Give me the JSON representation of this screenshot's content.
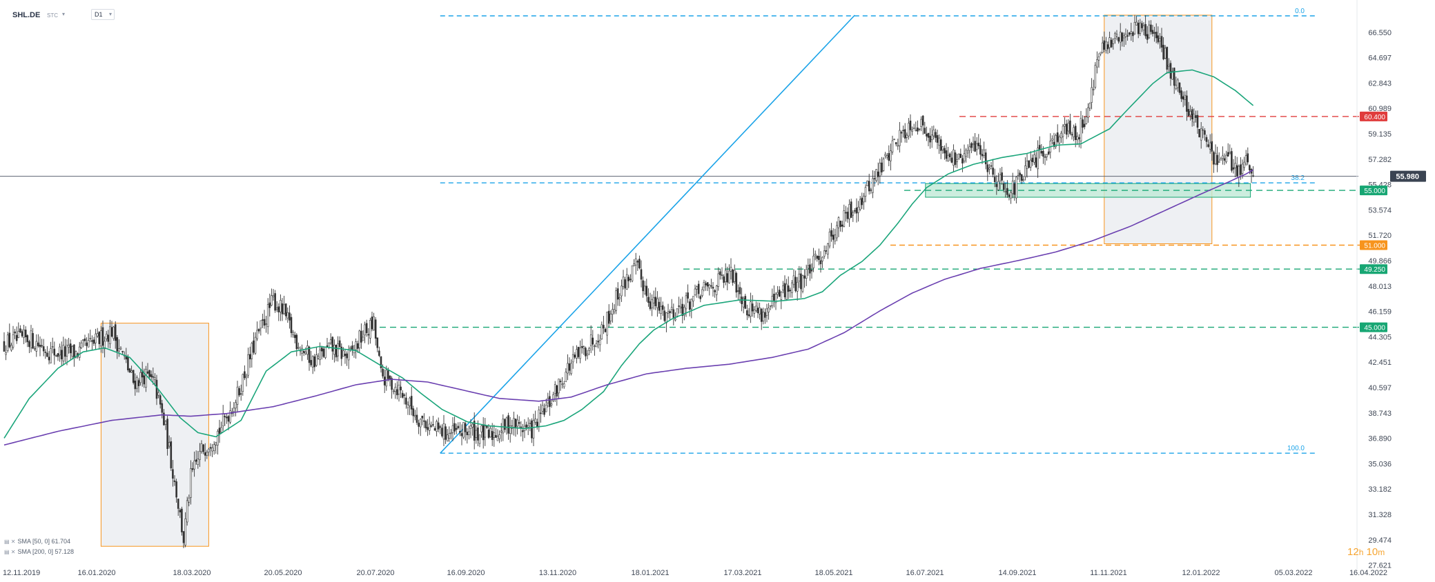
{
  "header": {
    "symbol": "SHL.DE",
    "exchange": "STC",
    "timeframe": "D1"
  },
  "indicators": [
    {
      "label": "SMA [50, 0] 61.704",
      "color": "#1aa57a"
    },
    {
      "label": "SMA [200, 0] 57.128",
      "color": "#6a3fb0"
    }
  ],
  "timer": {
    "hours": "12",
    "h": "h",
    "minutes": "10",
    "m": "m"
  },
  "colors": {
    "up": "#ffffff",
    "down": "#333333",
    "sma50": "#1aa57a",
    "sma200": "#6a3fb0",
    "fib": "#1aa3e8",
    "resistance": "#e03c3c",
    "support": "#17a673",
    "orange": "#f7941d",
    "price_tag": "#3b4452"
  },
  "chart_data": {
    "type": "candlestick",
    "title": "SHL.DE",
    "y_ticks": [
      "66.550",
      "64.697",
      "62.843",
      "60.989",
      "59.135",
      "57.282",
      "55.428",
      "53.574",
      "51.720",
      "49.866",
      "48.013",
      "46.159",
      "44.305",
      "42.451",
      "40.597",
      "38.743",
      "36.890",
      "35.036",
      "33.182",
      "31.328",
      "29.474",
      "27.621"
    ],
    "x_ticks": [
      "12.11.2019",
      "16.01.2020",
      "18.03.2020",
      "20.05.2020",
      "20.07.2020",
      "16.09.2020",
      "13.11.2020",
      "18.01.2021",
      "17.03.2021",
      "18.05.2021",
      "16.07.2021",
      "14.09.2021",
      "11.11.2021",
      "12.01.2022",
      "05.03.2022",
      "16.04.2022"
    ],
    "ylim": [
      27.6,
      67.8
    ],
    "current_price": "55.980",
    "price_levels": [
      {
        "label": "60.400",
        "value": 60.4,
        "color": "#e03c3c"
      },
      {
        "label": "55.000",
        "value": 55.0,
        "color": "#17a673"
      },
      {
        "label": "51.000",
        "value": 51.0,
        "color": "#f7941d"
      },
      {
        "label": "49.250",
        "value": 49.25,
        "color": "#17a673"
      },
      {
        "label": "45.000",
        "value": 45.0,
        "color": "#17a673"
      }
    ],
    "fib_labels": [
      {
        "label": "0.0",
        "value": 67.75
      },
      {
        "label": "38.2",
        "value": 55.55
      },
      {
        "label": "100.0",
        "value": 35.8
      }
    ],
    "close_anchors": [
      [
        0,
        43.8
      ],
      [
        14,
        44.2
      ],
      [
        26,
        43.2
      ],
      [
        40,
        43.1
      ],
      [
        52,
        44.0
      ],
      [
        60,
        44.8
      ],
      [
        66,
        43.0
      ],
      [
        72,
        41.0
      ],
      [
        78,
        41.5
      ],
      [
        84,
        40.8
      ],
      [
        90,
        37.5
      ],
      [
        96,
        33.0
      ],
      [
        100,
        29.5
      ],
      [
        104,
        34.0
      ],
      [
        110,
        36.0
      ],
      [
        120,
        37.5
      ],
      [
        130,
        40.0
      ],
      [
        140,
        44.0
      ],
      [
        150,
        47.0
      ],
      [
        156,
        46.0
      ],
      [
        162,
        44.2
      ],
      [
        172,
        42.5
      ],
      [
        182,
        43.5
      ],
      [
        192,
        42.8
      ],
      [
        200,
        44.5
      ],
      [
        206,
        45.2
      ],
      [
        210,
        41.5
      ],
      [
        220,
        40.5
      ],
      [
        230,
        38.5
      ],
      [
        240,
        37.5
      ],
      [
        250,
        37.2
      ],
      [
        260,
        37.5
      ],
      [
        270,
        37.0
      ],
      [
        282,
        38.0
      ],
      [
        294,
        37.5
      ],
      [
        304,
        39.5
      ],
      [
        314,
        42.0
      ],
      [
        324,
        43.5
      ],
      [
        334,
        45.0
      ],
      [
        344,
        48.0
      ],
      [
        352,
        49.4
      ],
      [
        360,
        47.0
      ],
      [
        368,
        46.0
      ],
      [
        378,
        46.5
      ],
      [
        388,
        47.5
      ],
      [
        398,
        48.3
      ],
      [
        406,
        48.8
      ],
      [
        414,
        46.5
      ],
      [
        424,
        46.0
      ],
      [
        434,
        47.5
      ],
      [
        444,
        48.5
      ],
      [
        454,
        50.0
      ],
      [
        462,
        52.0
      ],
      [
        472,
        53.5
      ],
      [
        478,
        54.5
      ],
      [
        488,
        56.5
      ],
      [
        496,
        58.5
      ],
      [
        506,
        60.0
      ],
      [
        514,
        59.5
      ],
      [
        524,
        58.0
      ],
      [
        532,
        57.0
      ],
      [
        542,
        58.5
      ],
      [
        552,
        56.0
      ],
      [
        562,
        55.0
      ],
      [
        570,
        56.5
      ],
      [
        580,
        58.0
      ],
      [
        590,
        59.5
      ],
      [
        598,
        59.0
      ],
      [
        604,
        61.0
      ],
      [
        610,
        65.0
      ],
      [
        620,
        66.0
      ],
      [
        630,
        67.0
      ],
      [
        640,
        66.5
      ],
      [
        646,
        65.0
      ],
      [
        654,
        62.5
      ],
      [
        662,
        60.5
      ],
      [
        670,
        58.5
      ],
      [
        676,
        57.0
      ],
      [
        682,
        57.2
      ],
      [
        688,
        56.5
      ],
      [
        692,
        57.0
      ],
      [
        696,
        56.0
      ]
    ],
    "sma50_anchors": [
      [
        0,
        36.9
      ],
      [
        14,
        39.8
      ],
      [
        30,
        42.0
      ],
      [
        44,
        43.2
      ],
      [
        56,
        43.5
      ],
      [
        70,
        42.8
      ],
      [
        84,
        40.8
      ],
      [
        98,
        38.4
      ],
      [
        108,
        37.3
      ],
      [
        118,
        37.0
      ],
      [
        132,
        38.2
      ],
      [
        146,
        41.8
      ],
      [
        160,
        43.2
      ],
      [
        176,
        43.6
      ],
      [
        196,
        43.3
      ],
      [
        210,
        42.2
      ],
      [
        222,
        41.3
      ],
      [
        232,
        40.2
      ],
      [
        244,
        39.0
      ],
      [
        258,
        38.1
      ],
      [
        270,
        37.8
      ],
      [
        290,
        37.6
      ],
      [
        302,
        37.8
      ],
      [
        312,
        38.2
      ],
      [
        322,
        39.0
      ],
      [
        334,
        40.3
      ],
      [
        344,
        42.2
      ],
      [
        354,
        43.8
      ],
      [
        362,
        44.8
      ],
      [
        372,
        45.6
      ],
      [
        390,
        46.6
      ],
      [
        410,
        47.0
      ],
      [
        430,
        46.9
      ],
      [
        446,
        47.1
      ],
      [
        456,
        47.6
      ],
      [
        466,
        48.8
      ],
      [
        478,
        49.8
      ],
      [
        488,
        51.0
      ],
      [
        498,
        52.6
      ],
      [
        506,
        54.0
      ],
      [
        514,
        55.2
      ],
      [
        526,
        56.2
      ],
      [
        540,
        56.9
      ],
      [
        556,
        57.4
      ],
      [
        570,
        57.7
      ],
      [
        586,
        58.3
      ],
      [
        600,
        58.4
      ],
      [
        616,
        59.5
      ],
      [
        626,
        60.9
      ],
      [
        640,
        62.8
      ],
      [
        648,
        63.6
      ],
      [
        662,
        63.8
      ],
      [
        674,
        63.3
      ],
      [
        686,
        62.3
      ],
      [
        696,
        61.2
      ]
    ],
    "sma200_anchors": [
      [
        0,
        36.4
      ],
      [
        30,
        37.4
      ],
      [
        60,
        38.2
      ],
      [
        88,
        38.6
      ],
      [
        104,
        38.5
      ],
      [
        124,
        38.7
      ],
      [
        150,
        39.2
      ],
      [
        174,
        40.0
      ],
      [
        196,
        40.8
      ],
      [
        216,
        41.2
      ],
      [
        236,
        41.0
      ],
      [
        256,
        40.4
      ],
      [
        276,
        39.8
      ],
      [
        298,
        39.6
      ],
      [
        316,
        39.9
      ],
      [
        336,
        40.8
      ],
      [
        358,
        41.6
      ],
      [
        380,
        42.0
      ],
      [
        404,
        42.3
      ],
      [
        428,
        42.8
      ],
      [
        448,
        43.4
      ],
      [
        468,
        44.6
      ],
      [
        488,
        46.2
      ],
      [
        506,
        47.5
      ],
      [
        524,
        48.5
      ],
      [
        544,
        49.3
      ],
      [
        566,
        49.9
      ],
      [
        586,
        50.5
      ],
      [
        606,
        51.3
      ],
      [
        628,
        52.4
      ],
      [
        648,
        53.6
      ],
      [
        668,
        54.8
      ],
      [
        682,
        55.6
      ],
      [
        692,
        56.2
      ],
      [
        696,
        56.5
      ]
    ],
    "boxes": [
      {
        "x1": 54,
        "x2": 114,
        "y1": 29.0,
        "y2": 45.3,
        "color": "#f7941d",
        "fill": "#eef0f3"
      },
      {
        "x1": 613,
        "x2": 673,
        "y1": 51.1,
        "y2": 67.8,
        "color": "#f7941d",
        "fill": "#eef0f3"
      }
    ],
    "support_zone": {
      "x1": 498,
      "x2": 696,
      "y1": 54.5,
      "y2": 55.5,
      "color": "#17a673"
    },
    "trendline": {
      "x1": 243,
      "y1": 35.8,
      "x2": 474,
      "y2": 67.8,
      "color": "#1aa3e8"
    }
  }
}
